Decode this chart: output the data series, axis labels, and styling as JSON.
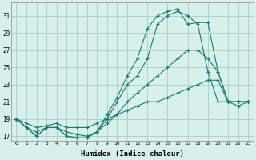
{
  "xlabel": "Humidex (Indice chaleur)",
  "bg_color": "#d8f0ec",
  "grid_color": "#aaccc8",
  "line_color": "#1a7a6e",
  "xlim": [
    -0.5,
    23.5
  ],
  "ylim": [
    16.5,
    32.5
  ],
  "yticks": [
    17,
    19,
    21,
    23,
    25,
    27,
    29,
    31
  ],
  "xticks": [
    0,
    1,
    2,
    3,
    4,
    5,
    6,
    7,
    8,
    9,
    10,
    11,
    12,
    13,
    14,
    15,
    16,
    17,
    18,
    19,
    20,
    21,
    22,
    23
  ],
  "lines": [
    {
      "x": [
        0,
        1,
        2,
        3,
        4,
        5,
        6,
        7,
        8,
        9,
        10,
        11,
        12,
        13,
        14,
        15,
        16,
        17,
        18,
        19,
        20,
        21,
        22,
        23
      ],
      "y": [
        19,
        18,
        17,
        18,
        18,
        17,
        16.8,
        16.8,
        17.5,
        19,
        21,
        23,
        24,
        26,
        30,
        31,
        31.5,
        31,
        30,
        24.5,
        21,
        21,
        21,
        21
      ]
    },
    {
      "x": [
        0,
        1,
        2,
        3,
        4,
        5,
        6,
        7,
        8,
        9,
        10,
        11,
        12,
        13,
        14,
        15,
        16,
        17,
        18,
        19,
        20,
        21,
        22,
        23
      ],
      "y": [
        19,
        18,
        17,
        18,
        18,
        17,
        16.8,
        16.8,
        17.5,
        19.5,
        21.5,
        24,
        26,
        29.5,
        31,
        31.5,
        31.8,
        30,
        30.2,
        30.2,
        24.5,
        21,
        20.5,
        21
      ]
    },
    {
      "x": [
        0,
        1,
        2,
        3,
        4,
        5,
        6,
        7,
        8,
        9,
        10,
        11,
        12,
        13,
        14,
        15,
        16,
        17,
        18,
        19,
        20,
        21,
        22,
        23
      ],
      "y": [
        19,
        18,
        17.5,
        18,
        18,
        17.5,
        17.2,
        17,
        17.5,
        18.5,
        19.5,
        21,
        22,
        23,
        24,
        25,
        26,
        27,
        27,
        26,
        24.5,
        21,
        21,
        21
      ]
    },
    {
      "x": [
        0,
        1,
        2,
        3,
        4,
        5,
        6,
        7,
        8,
        9,
        10,
        11,
        12,
        13,
        14,
        15,
        16,
        17,
        18,
        19,
        20,
        21,
        22,
        23
      ],
      "y": [
        19,
        18.5,
        18,
        18.2,
        18.5,
        18,
        18,
        18,
        18.5,
        19,
        19.5,
        20,
        20.5,
        21,
        21,
        21.5,
        22,
        22.5,
        23,
        23.5,
        23.5,
        21,
        21,
        21
      ]
    }
  ]
}
